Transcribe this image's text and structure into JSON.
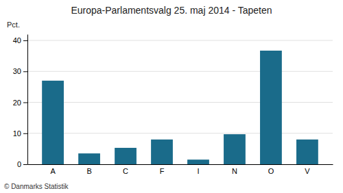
{
  "chart_data": {
    "type": "bar",
    "title": "Europa-Parlamentsvalg 25. maj 2014 - Tapeten",
    "categories": [
      "A",
      "B",
      "C",
      "F",
      "I",
      "N",
      "O",
      "V"
    ],
    "values": [
      27.0,
      3.5,
      5.3,
      8.0,
      1.5,
      9.7,
      36.7,
      8.0
    ],
    "color": "#1a6b8a",
    "ylabel": "Pct.",
    "ylim": [
      0,
      42
    ],
    "yticks": [
      0,
      10,
      20,
      30,
      40
    ],
    "grid": true,
    "footer": "© Danmarks Statistik"
  }
}
